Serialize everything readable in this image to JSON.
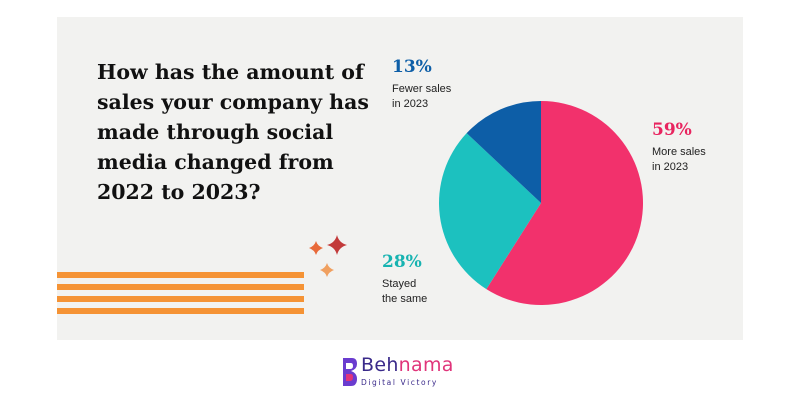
{
  "question": "How has the amount of sales your company has made through social media changed from 2022 to 2023?",
  "chart_data": {
    "type": "pie",
    "slices": [
      {
        "label": "More sales in 2023",
        "label_lines": [
          "More sales",
          "in 2023"
        ],
        "value": 59,
        "value_label": "59%",
        "color": "#f2316c",
        "label_color": "#e8245f"
      },
      {
        "label": "Stayed the same",
        "label_lines": [
          "Stayed",
          "the same"
        ],
        "value": 28,
        "value_label": "28%",
        "color": "#1cc1bf",
        "label_color": "#17b3b1"
      },
      {
        "label": "Fewer sales in 2023",
        "label_lines": [
          "Fewer sales",
          "in 2023"
        ],
        "value": 13,
        "value_label": "13%",
        "color": "#0d5ea7",
        "label_color": "#0d5ea7"
      }
    ]
  },
  "logo": {
    "name_part1": "Beh",
    "name_part2": "nama",
    "tagline": "Digital Victory"
  },
  "colors": {
    "stripes": "#f59335",
    "sparkle_large": "#c23a3a",
    "sparkle_small": "#f0a060",
    "sparkle_left": "#e86a3a"
  }
}
